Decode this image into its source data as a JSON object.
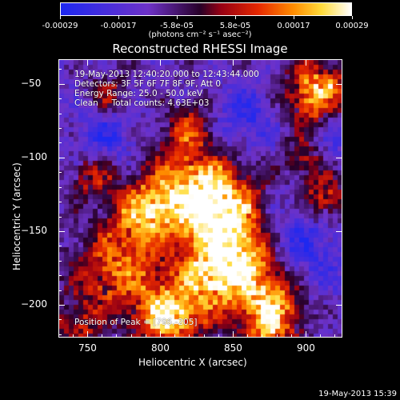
{
  "colorbar": {
    "tick_labels": [
      "-0.00029",
      "-0.00017",
      "-5.8e-05",
      "5.8e-05",
      "0.00017",
      "0.00029"
    ],
    "unit_label": "(photons cm⁻² s⁻¹ asec⁻²)"
  },
  "plot": {
    "title": "Reconstructed RHESSI Image",
    "info_lines": [
      "19-May-2013 12:40:20.000 to 12:43:44.000",
      "Detectors: 3F 5F 6F 7F 8F 9F, Att 0",
      "Energy Range: 25.0 - 50.0 keV",
      "Clean     Total counts: 4.63E+03"
    ],
    "peak_label": "Position of Peak = [796,-205]"
  },
  "chart_data": {
    "type": "heatmap",
    "title": "Reconstructed RHESSI Image",
    "xlabel": "Heliocentric X (arcsec)",
    "ylabel": "Heliocentric Y (arcsec)",
    "xlim": [
      730,
      925
    ],
    "ylim": [
      -222,
      -33
    ],
    "xticks": [
      750,
      800,
      850,
      900
    ],
    "yticks": [
      -50,
      -100,
      -150,
      -200
    ],
    "color_range": [
      -0.00029,
      0.00029
    ],
    "peak_position": [
      796,
      -205
    ]
  },
  "footer": {
    "timestamp": "19-May-2013 15:39"
  }
}
